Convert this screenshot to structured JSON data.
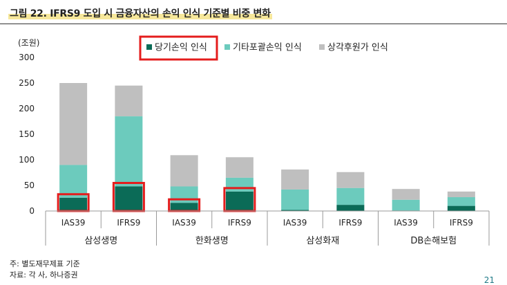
{
  "figure_title": "그림 22. IFRS9 도입 시 금융자산의 손익 인식 기준별 비중 변화",
  "unit_label": "(조원)",
  "footnotes": [
    "주: 별도재무제표 기준",
    "자료: 각 사, 하나증권"
  ],
  "page_number": "21",
  "colors": {
    "net_income": "#0b6b57",
    "oci": "#6ccbbd",
    "amortized_cost": "#bfbfbf",
    "highlight": "#e41c1c",
    "axis": "#999999"
  },
  "chart_data": {
    "type": "bar",
    "stacked": true,
    "ylim": [
      0,
      300
    ],
    "yticks": [
      "300",
      "250",
      "200",
      "150",
      "100",
      "50",
      "0"
    ],
    "categories": [
      "IAS39",
      "IFRS9",
      "IAS39",
      "IFRS9",
      "IAS39",
      "IFRS9",
      "IAS39",
      "IFRS9"
    ],
    "groups": [
      "삼성생명",
      "한화생명",
      "삼성화재",
      "DB손해보험"
    ],
    "series": [
      {
        "name": "당기손익 인식",
        "values": [
          26,
          48,
          16,
          38,
          2,
          12,
          1,
          10
        ]
      },
      {
        "name": "기타포괄손익 인식",
        "values": [
          64,
          137,
          32,
          27,
          40,
          33,
          21,
          17
        ]
      },
      {
        "name": "상각후원가 인식",
        "values": [
          160,
          60,
          61,
          40,
          39,
          31,
          21,
          11
        ]
      }
    ],
    "legend_position": "top",
    "highlighted_legend_item": 0,
    "highlighted_bars": [
      0,
      1,
      2,
      3
    ],
    "grid": false
  }
}
